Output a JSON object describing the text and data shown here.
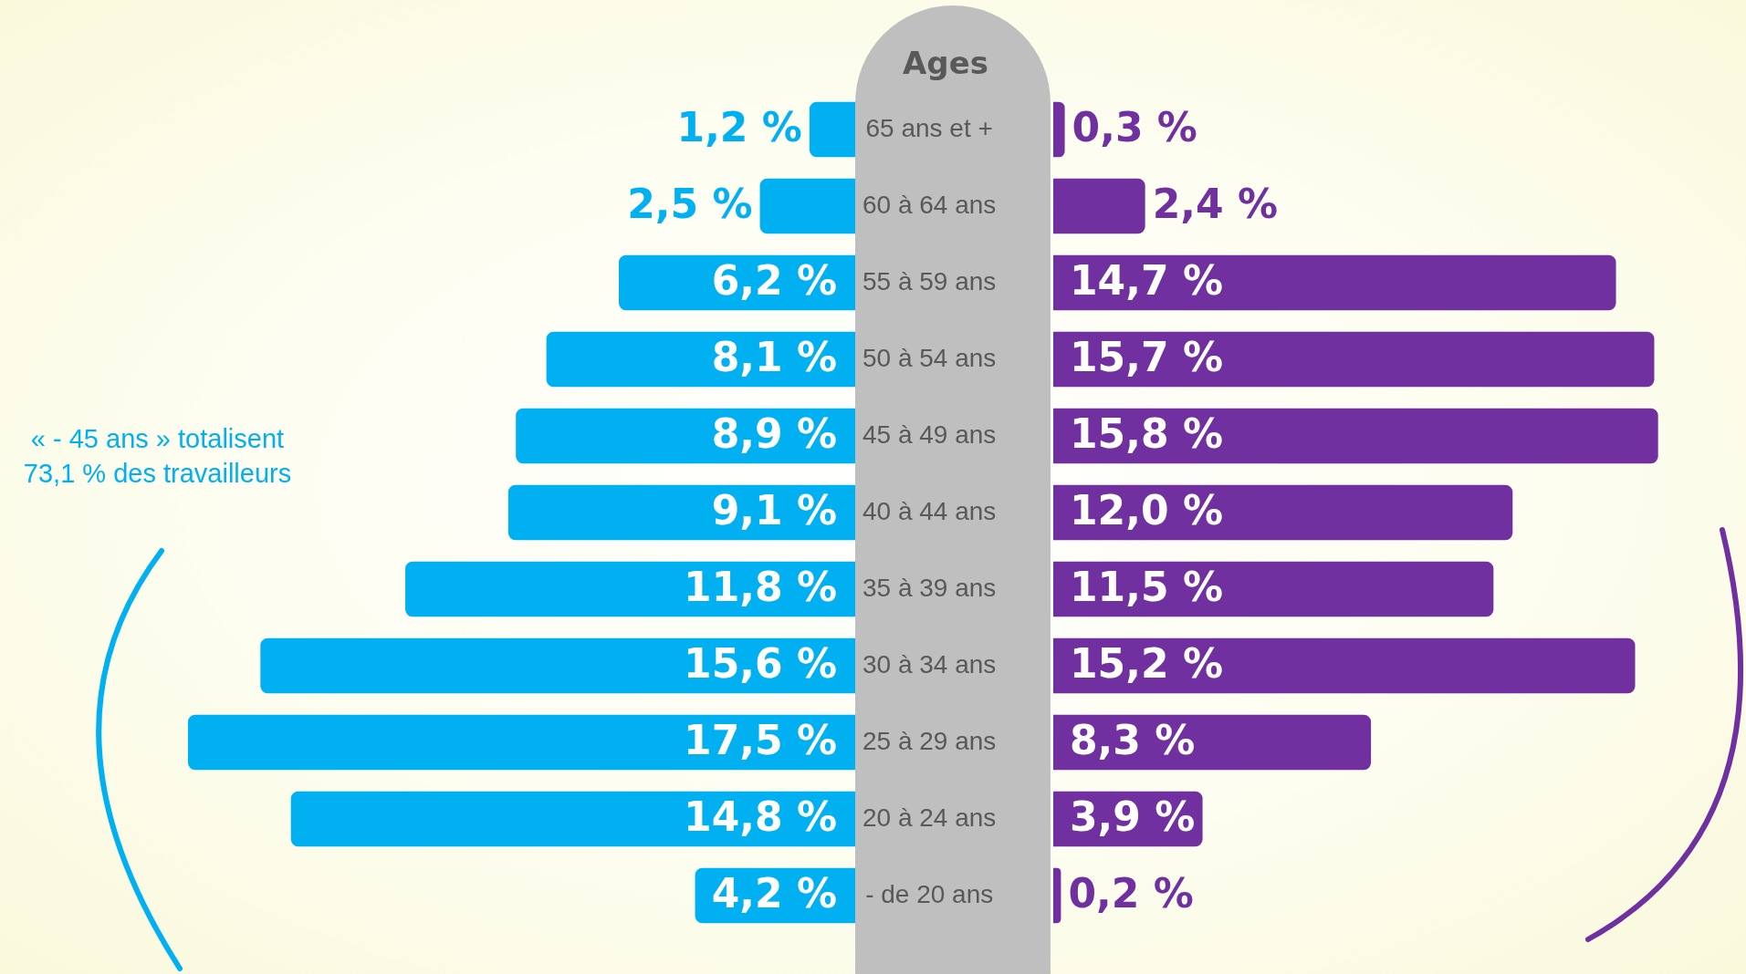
{
  "chart_data": [
    {
      "type": "bar",
      "orientation": "horizontal",
      "ylabel": "Ages",
      "categories": [
        "65 ans et +",
        "60 à 64 ans",
        "55 à 59 ans",
        "50 à 54 ans",
        "45 à 49 ans",
        "40 à 44 ans",
        "35 à 39 ans",
        "30 à 34 ans",
        "25 à 29 ans",
        "20 à 24 ans",
        "- de 20 ans"
      ],
      "series": [
        {
          "color": "#00b0f0",
          "values": [
            1.2,
            2.5,
            6.2,
            8.1,
            8.9,
            9.1,
            11.8,
            15.6,
            17.5,
            14.8,
            4.2
          ],
          "value_labels": [
            "1,2 %",
            "2,5 %",
            "6,2 %",
            "8,1 %",
            "8,9 %",
            "9,1 %",
            "11,8 %",
            "15,6 %",
            "17,5 %",
            "14,8 %",
            "4,2 %"
          ]
        }
      ],
      "tick_labels": "y",
      "annotations": [
        "« - 45 ans » totalisent 73,1 % des travailleurs"
      ]
    },
    {
      "type": "bar",
      "orientation": "horizontal",
      "categories": [
        null,
        null,
        null,
        null,
        null,
        null,
        null,
        null,
        null,
        null,
        null
      ],
      "series": [
        {
          "color": "#7030a0",
          "values": [
            0.3,
            2.4,
            14.7,
            15.7,
            15.8,
            12.0,
            11.5,
            15.2,
            8.3,
            3.9,
            0.2
          ],
          "value_labels": [
            "0,3 %",
            "2,4 %",
            "14,7 %",
            "15,7 %",
            "15,8 %",
            "12,0 %",
            "11,5 %",
            "15,2 %",
            "8,3 %",
            "3,9 %",
            "0,2 %"
          ]
        }
      ],
      "tick_labels": false
    }
  ]
}
